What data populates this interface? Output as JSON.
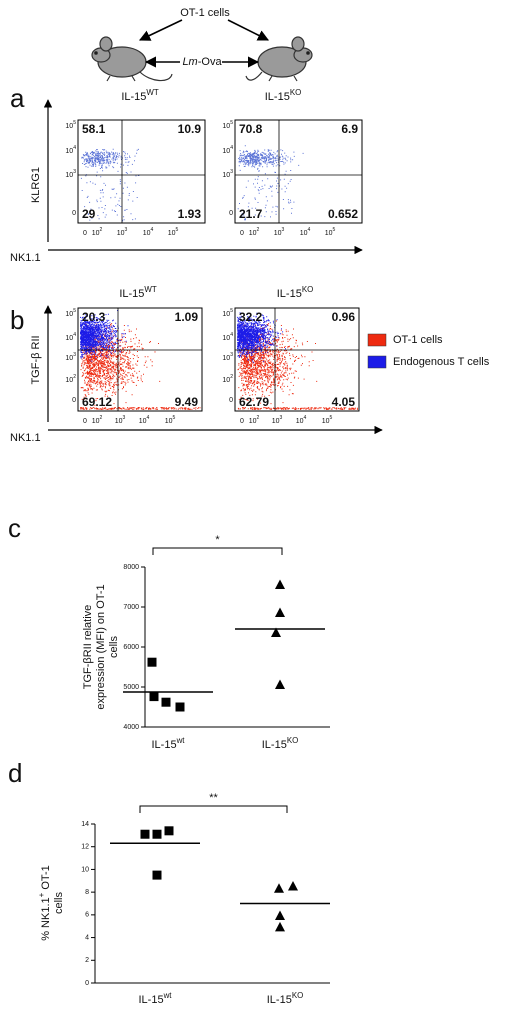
{
  "schematic": {
    "cells_label": "OT-1 cells",
    "infection_label": [
      {
        "italic": "Lm"
      },
      {
        "text": "-Ova"
      }
    ],
    "groups": [
      [
        {
          "text": "IL-15"
        },
        {
          "sup": "WT"
        }
      ],
      [
        {
          "text": "IL-15"
        },
        {
          "sup": "KO"
        }
      ]
    ]
  },
  "panel_a": {
    "letter": "a",
    "y_label": "KLRG1",
    "x_label": "NK1.1",
    "yticks": [
      [
        {
          "text": "10"
        },
        {
          "sup": "5"
        }
      ],
      [
        {
          "text": "10"
        },
        {
          "sup": "4"
        }
      ],
      [
        {
          "text": "10"
        },
        {
          "sup": "3"
        }
      ],
      "0"
    ],
    "xticks": [
      "0",
      [
        {
          "text": "10"
        },
        {
          "sup": "2"
        }
      ],
      [
        {
          "text": "10"
        },
        {
          "sup": "3"
        }
      ],
      [
        {
          "text": "10"
        },
        {
          "sup": "4"
        }
      ],
      [
        {
          "text": "10"
        },
        {
          "sup": "5"
        }
      ]
    ],
    "plots": [
      {
        "quadrants": [
          "58.1",
          "10.9",
          "29",
          "1.93"
        ]
      },
      {
        "quadrants": [
          "70.8",
          "6.9",
          "21.7",
          "0.652"
        ]
      }
    ]
  },
  "panel_b": {
    "letter": "b",
    "y_label": "TGF-β RII",
    "x_label": "NK1.1",
    "titles": [
      [
        {
          "text": "IL-15"
        },
        {
          "sup": "WT"
        }
      ],
      [
        {
          "text": "IL-15"
        },
        {
          "sup": "KO"
        }
      ]
    ],
    "yticks": [
      [
        {
          "text": "10"
        },
        {
          "sup": "5"
        }
      ],
      [
        {
          "text": "10"
        },
        {
          "sup": "4"
        }
      ],
      [
        {
          "text": "10"
        },
        {
          "sup": "3"
        }
      ],
      [
        {
          "text": "10"
        },
        {
          "sup": "2"
        }
      ],
      "0"
    ],
    "xticks": [
      "0",
      [
        {
          "text": "10"
        },
        {
          "sup": "2"
        }
      ],
      [
        {
          "text": "10"
        },
        {
          "sup": "3"
        }
      ],
      [
        {
          "text": "10"
        },
        {
          "sup": "4"
        }
      ],
      [
        {
          "text": "10"
        },
        {
          "sup": "5"
        }
      ]
    ],
    "plots": [
      {
        "quadrants": [
          "20.3",
          "1.09",
          "69.12",
          "9.49"
        ]
      },
      {
        "quadrants": [
          "32.2",
          "0.96",
          "62.79",
          "4.05"
        ]
      }
    ],
    "legend": [
      {
        "name": "OT-1  cells",
        "color": "#ee2a10"
      },
      {
        "name": "Endogenous T cells",
        "color": "#1c1ce8"
      }
    ]
  },
  "chart_data": [
    {
      "type": "dot",
      "panel_label": "c",
      "significance": "*",
      "y_label": [
        "TGF-βRII relative",
        "expression (MFI)  on OT-1",
        "cells"
      ],
      "categories": [
        [
          {
            "text": "IL-15"
          },
          {
            "sup": "wt"
          }
        ],
        [
          {
            "text": "IL-15"
          },
          {
            "sup": "KO"
          }
        ]
      ],
      "markers": [
        "square",
        "triangle"
      ],
      "color": "#000000",
      "values": [
        [
          5620,
          4760,
          4620,
          4500
        ],
        [
          7550,
          6850,
          6350,
          5050
        ]
      ],
      "means": [
        4875,
        6450
      ],
      "ylim": [
        4000,
        8000
      ],
      "yticks": [
        4000,
        5000,
        6000,
        7000,
        8000
      ]
    },
    {
      "type": "dot",
      "panel_label": "d",
      "significance": "**",
      "y_label": [
        [
          {
            "text": "% NK1.1"
          },
          {
            "sup": "+"
          },
          {
            "text": " OT-1"
          }
        ],
        "cells"
      ],
      "categories": [
        [
          {
            "text": "IL-15"
          },
          {
            "sup": "wt"
          }
        ],
        [
          {
            "text": "IL-15"
          },
          {
            "sup": "KO"
          }
        ]
      ],
      "markers": [
        "square",
        "triangle"
      ],
      "color": "#000000",
      "values": [
        [
          13.1,
          13.1,
          13.4,
          9.5
        ],
        [
          8.3,
          8.5,
          5.9,
          4.9
        ]
      ],
      "means": [
        12.3,
        7.0
      ],
      "ylim": [
        0,
        14
      ],
      "yticks": [
        0,
        2,
        4,
        6,
        8,
        10,
        12,
        14
      ]
    }
  ]
}
